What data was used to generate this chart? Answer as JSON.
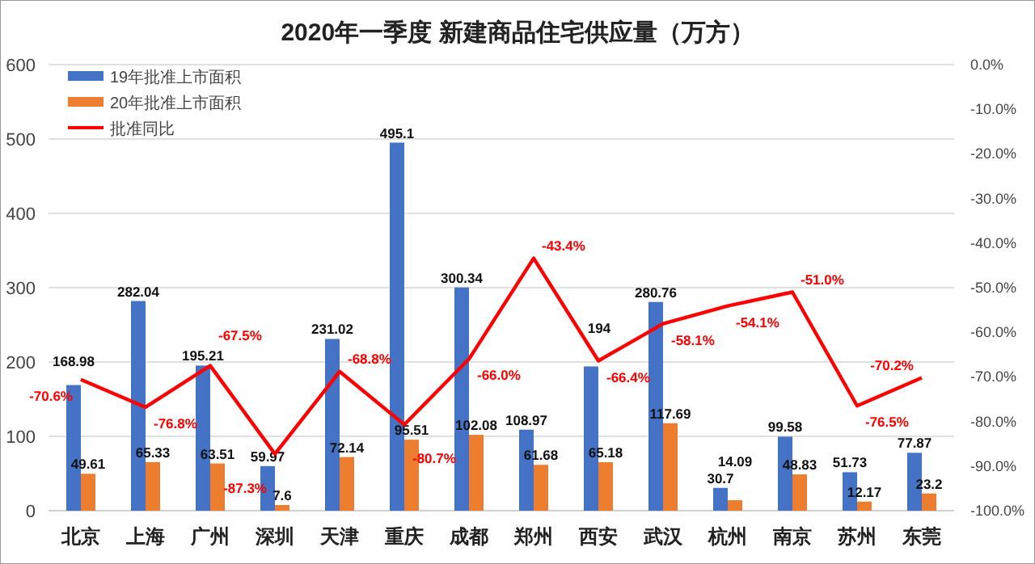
{
  "chart_data": {
    "type": "bar",
    "title": "2020年一季度 新建商品住宅供应量（万方）",
    "categories": [
      "北京",
      "上海",
      "广州",
      "深圳",
      "天津",
      "重庆",
      "成都",
      "郑州",
      "西安",
      "武汉",
      "杭州",
      "南京",
      "苏州",
      "东莞"
    ],
    "series": [
      {
        "name": "19年批准上市面积",
        "color": "#4472c4",
        "values": [
          168.98,
          282.04,
          195.21,
          59.97,
          231.02,
          495.1,
          300.34,
          108.97,
          194,
          280.76,
          30.7,
          99.58,
          51.73,
          77.87
        ],
        "value_labels": [
          "168.98",
          "282.04",
          "195.21",
          "59.97",
          "231.02",
          "495.1",
          "300.34",
          "108.97",
          "194",
          "280.76",
          "30.7",
          "99.58",
          "51.73",
          "77.87"
        ]
      },
      {
        "name": "20年批准上市面积",
        "color": "#ed7d31",
        "values": [
          49.61,
          65.33,
          63.51,
          7.6,
          72.14,
          95.51,
          102.08,
          61.68,
          65.18,
          117.69,
          14.09,
          48.83,
          12.17,
          23.2
        ],
        "value_labels": [
          "49.61",
          "65.33",
          "63.51",
          "7.6",
          "72.14",
          "95.51",
          "102.08",
          "61.68",
          "65.18",
          "117.69",
          "14.09",
          "48.83",
          "12.17",
          "23.2"
        ]
      },
      {
        "name": "批准同比",
        "type": "line",
        "axis": "y2",
        "color": "#ff0000",
        "values": [
          -70.6,
          -76.8,
          -67.5,
          -87.3,
          -68.8,
          -80.7,
          -66.0,
          -43.4,
          -66.4,
          -58.1,
          -54.1,
          -51.0,
          -76.5,
          -70.2
        ],
        "value_labels": [
          "-70.6%",
          "-76.8%",
          "-67.5%",
          "-87.3%",
          "-68.8%",
          "-80.7%",
          "-66.0%",
          "-43.4%",
          "-66.4%",
          "-58.1%",
          "-54.1%",
          "-51.0%",
          "-76.5%",
          "-70.2%"
        ]
      }
    ],
    "ylim": [
      0,
      600
    ],
    "yticks": [
      0,
      100,
      200,
      300,
      400,
      500,
      600
    ],
    "y2lim": [
      -100,
      0
    ],
    "y2ticks": [
      {
        "value": 0,
        "label": "0.0%"
      },
      {
        "value": -10,
        "label": "-10.0%"
      },
      {
        "value": -20,
        "label": "-20.0%"
      },
      {
        "value": -30,
        "label": "-30.0%"
      },
      {
        "value": -40,
        "label": "-40.0%"
      },
      {
        "value": -50,
        "label": "-50.0%"
      },
      {
        "value": -60,
        "label": "-60.0%"
      },
      {
        "value": -70,
        "label": "-70.0%"
      },
      {
        "value": -80,
        "label": "-80.0%"
      },
      {
        "value": -90,
        "label": "-90.0%"
      },
      {
        "value": -100,
        "label": "-100.0%"
      }
    ],
    "grid": "y",
    "legend": "top left"
  }
}
